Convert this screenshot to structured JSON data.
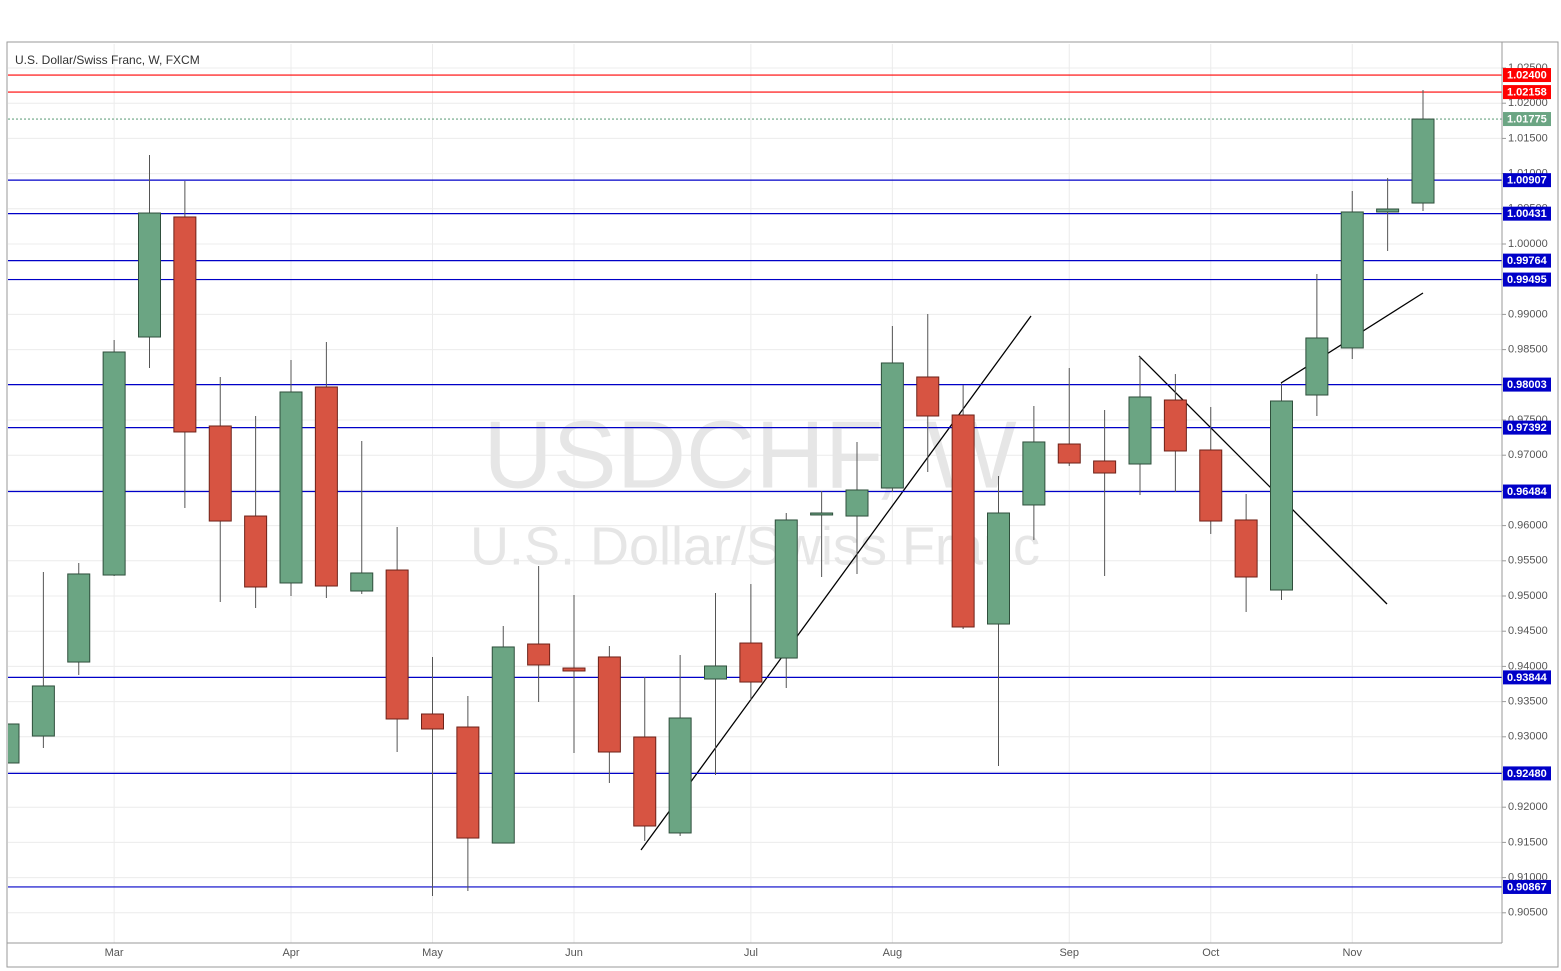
{
  "chart_data": {
    "type": "candlestick",
    "title": "U.S. Dollar/Swiss Franc, W, FXCM",
    "watermark": "USDCHF, W",
    "watermark_subtitle": "U.S. Dollar/Swiss Franc",
    "categories": [
      null,
      null,
      null,
      "Mar",
      null,
      null,
      null,
      null,
      "Apr",
      null,
      null,
      null,
      "May",
      null,
      null,
      null,
      "Jun",
      null,
      null,
      null,
      null,
      "Jul",
      null,
      null,
      null,
      "Aug",
      null,
      null,
      null,
      null,
      "Sep",
      null,
      null,
      null,
      "Oct",
      null,
      null,
      null,
      "Nov",
      null,
      null
    ],
    "open": [
      0.92628,
      0.93011,
      0.94062,
      0.95298,
      0.98679,
      1.00384,
      0.97415,
      0.96136,
      0.95185,
      0.97969,
      0.95071,
      0.95369,
      0.93324,
      0.93139,
      0.91491,
      0.94318,
      0.93977,
      0.94134,
      0.92997,
      0.91634,
      0.93821,
      0.94332,
      0.94119,
      0.96151,
      0.96136,
      0.96534,
      0.98111,
      0.97571,
      0.94602,
      0.96293,
      0.97159,
      0.96918,
      0.96875,
      0.97784,
      0.97074,
      0.9608,
      0.95085,
      0.97855,
      0.98523,
      1.00455,
      1.00582
    ],
    "high": [
      0.93182,
      0.95341,
      0.95469,
      0.98636,
      1.01264,
      1.00895,
      0.98111,
      0.97557,
      0.98352,
      0.98608,
      0.97202,
      0.9598,
      0.94134,
      0.9358,
      0.94574,
      0.95426,
      0.95014,
      0.9429,
      0.93849,
      0.94162,
      0.95043,
      0.9517,
      0.96179,
      0.96491,
      0.97188,
      0.98835,
      0.99006,
      0.97997,
      0.96705,
      0.97699,
      0.98239,
      0.97642,
      0.98409,
      0.98153,
      0.97685,
      0.96449,
      0.98026,
      0.99574,
      1.00753,
      1.00938,
      1.02188
    ],
    "low": [
      0.92628,
      0.92841,
      0.93878,
      0.95284,
      0.98239,
      0.9625,
      0.94915,
      0.9483,
      0.95,
      0.94972,
      0.95028,
      0.92784,
      0.90739,
      0.9081,
      0.91491,
      0.93494,
      0.9277,
      0.92344,
      0.9152,
      0.91591,
      0.92457,
      0.93523,
      0.93693,
      0.9527,
      0.95313,
      0.96477,
      0.96761,
      0.94531,
      0.92585,
      0.95795,
      0.96847,
      0.95284,
      0.96435,
      0.96477,
      0.95881,
      0.94773,
      0.94943,
      0.97557,
      0.98366,
      0.99901,
      1.00469
    ],
    "close": [
      0.93182,
      0.93722,
      0.95313,
      0.98466,
      1.0044,
      0.9733,
      0.96065,
      0.95128,
      0.97898,
      0.95142,
      0.95327,
      0.93253,
      0.93111,
      0.91562,
      0.94276,
      0.9402,
      0.93935,
      0.92784,
      0.91733,
      0.93267,
      0.94006,
      0.93778,
      0.9608,
      0.96179,
      0.96506,
      0.9831,
      0.97557,
      0.9456,
      0.96179,
      0.97188,
      0.96889,
      0.96747,
      0.97827,
      0.9706,
      0.96065,
      0.9527,
      0.9777,
      0.98665,
      1.00455,
      1.00497,
      1.01775
    ],
    "up_color": "#6ba583",
    "down_color": "#d75442",
    "ylim": [
      0.90071,
      1.02841
    ],
    "yticks": [
      {
        "value": 0.905,
        "label": "0.90500"
      },
      {
        "value": 0.91,
        "label": "0.91000"
      },
      {
        "value": 0.915,
        "label": "0.91500"
      },
      {
        "value": 0.92,
        "label": "0.92000"
      },
      {
        "value": 0.925,
        "label": "0.92500"
      },
      {
        "value": 0.93,
        "label": "0.93000"
      },
      {
        "value": 0.935,
        "label": "0.93500"
      },
      {
        "value": 0.94,
        "label": "0.94000"
      },
      {
        "value": 0.945,
        "label": "0.94500"
      },
      {
        "value": 0.95,
        "label": "0.95000"
      },
      {
        "value": 0.955,
        "label": "0.95500"
      },
      {
        "value": 0.96,
        "label": "0.96000"
      },
      {
        "value": 0.965,
        "label": "0.96500"
      },
      {
        "value": 0.97,
        "label": "0.97000"
      },
      {
        "value": 0.975,
        "label": "0.97500"
      },
      {
        "value": 0.98,
        "label": "0.98000"
      },
      {
        "value": 0.985,
        "label": "0.98500"
      },
      {
        "value": 0.99,
        "label": "0.99000"
      },
      {
        "value": 0.995,
        "label": "0.99500"
      },
      {
        "value": 1.0,
        "label": "1.00000"
      },
      {
        "value": 1.005,
        "label": "1.00500"
      },
      {
        "value": 1.01,
        "label": "1.01000"
      },
      {
        "value": 1.015,
        "label": "1.01500"
      },
      {
        "value": 1.02,
        "label": "1.02000"
      },
      {
        "value": 1.025,
        "label": "1.02500"
      }
    ],
    "grid": true,
    "levels": [
      {
        "value": 1.024,
        "label": "1.02400",
        "color": "#ff0000"
      },
      {
        "value": 1.02158,
        "label": "1.02158",
        "color": "#ff0000"
      },
      {
        "value": 1.00907,
        "label": "1.00907",
        "color": "#0000c8"
      },
      {
        "value": 1.00431,
        "label": "1.00431",
        "color": "#0000c8"
      },
      {
        "value": 0.99764,
        "label": "0.99764",
        "color": "#0000c8"
      },
      {
        "value": 0.99495,
        "label": "0.99495",
        "color": "#0000c8"
      },
      {
        "value": 0.98003,
        "label": "0.98003",
        "color": "#0000c8"
      },
      {
        "value": 0.97392,
        "label": "0.97392",
        "color": "#0000c8"
      },
      {
        "value": 0.96484,
        "label": "0.96484",
        "color": "#0000c8"
      },
      {
        "value": 0.93844,
        "label": "0.93844",
        "color": "#0000c8"
      },
      {
        "value": 0.9248,
        "label": "0.92480",
        "color": "#0000c8"
      },
      {
        "value": 0.90867,
        "label": "0.90867",
        "color": "#0000c8"
      }
    ],
    "last_price": {
      "value": 1.01775,
      "label": "1.01775",
      "color": "#6ba583"
    }
  }
}
